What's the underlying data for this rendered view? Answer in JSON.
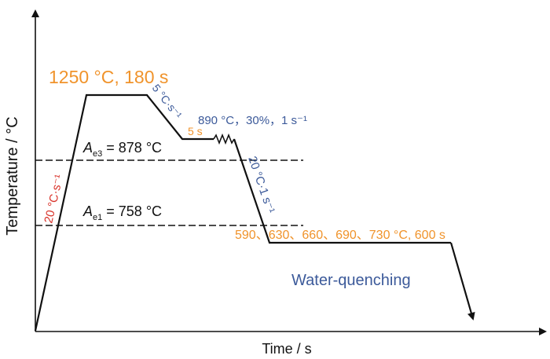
{
  "colors": {
    "orange": "#F0932B",
    "blue": "#3C5A9A",
    "red": "#D9342B",
    "black": "#111111"
  },
  "axes": {
    "ylabel": "Temperature / °C",
    "xlabel": "Time / s"
  },
  "labels": {
    "soak": "1250 °C, 180 s",
    "cool1_rate": "5 °C·s⁻¹",
    "deform_hold": "5 s",
    "deform_params": "890 °C，30%，1 s⁻¹",
    "heat_rate": "20 °C·s⁻¹",
    "cool2_rate": "20 °C·1 s⁻¹",
    "ae3_sym": "A",
    "ae3_sub": "e3",
    "ae3_val": " = 878 °C",
    "ae1_sym": "A",
    "ae1_sub": "e1",
    "ae1_val": " = 758 °C",
    "isothermal": "590、630、660、690、730 °C, 600 s",
    "quench": "Water-quenching"
  }
}
